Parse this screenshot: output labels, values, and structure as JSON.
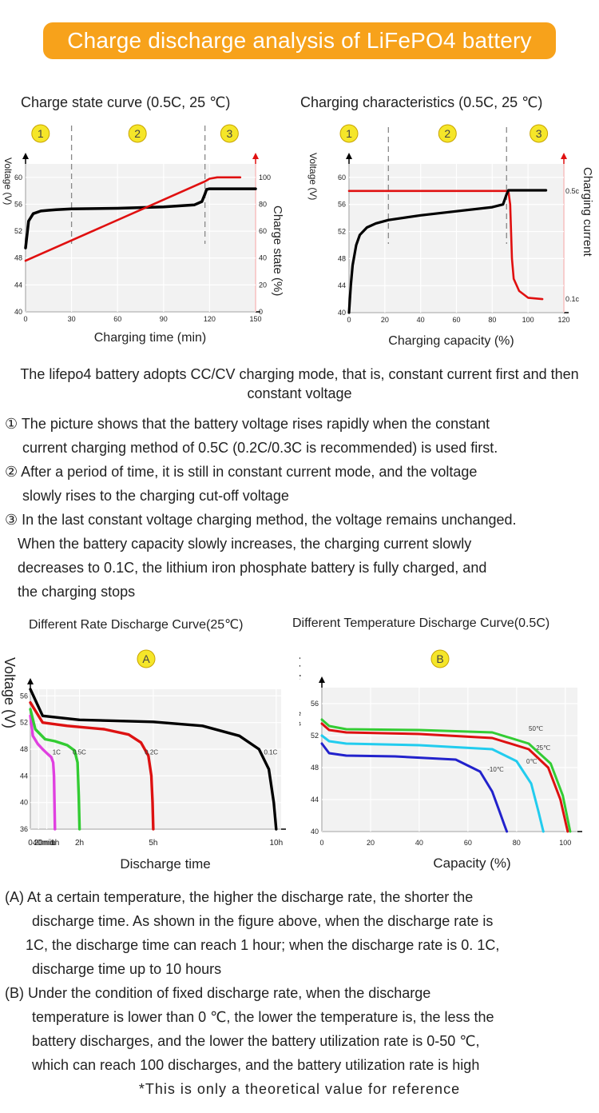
{
  "banner": "Charge discharge analysis of LiFePO4 battery",
  "charts": {
    "chart1_title": "Charge state curve (0.5C, 25 ℃)",
    "chart2_title": "Charging characteristics (0.5C, 25 ℃)",
    "chart3_title": "Different Rate Discharge Curve(25℃)",
    "chart4_title": "Different Temperature Discharge Curve(0.5C)"
  },
  "intro": "The lifepo4 battery adopts CC/CV charging mode, that is, constant current first and then constant voltage",
  "points": [
    [
      "① The picture shows that the battery voltage rises rapidly when the constant",
      "current charging method of 0.5C (0.2C/0.3C is recommended) is used first."
    ],
    [
      "② After a period of time, it is still in constant current mode, and the voltage",
      "slowly rises to the charging cut-off voltage"
    ],
    [
      "③ In the last constant voltage charging method, the voltage remains unchanged.",
      "When the battery capacity slowly increases, the charging current slowly",
      "decreases to 0.1C, the lithium iron phosphate battery is fully charged, and",
      "the charging stops"
    ]
  ],
  "notes": [
    [
      "(A) At a certain temperature, the higher the discharge rate, the shorter the",
      "discharge time. As shown in the figure above, when the discharge rate is",
      "1C, the discharge time can reach 1 hour; when the discharge rate is 0. 1C,",
      "discharge time up to 10 hours"
    ],
    [
      "(B) Under the condition of fixed discharge rate, when the discharge",
      "temperature is lower than 0 ℃, the lower the temperature is, the less the",
      "battery discharges, and the lower the battery utilization rate is 0-50 ℃,",
      "which can reach 100 discharges, and the battery utilization rate is high"
    ]
  ],
  "footnote": "*This is only a theoretical value for reference",
  "chart_data": [
    {
      "type": "line",
      "title": "Charge state curve (0.5C, 25 ℃)",
      "xlabel": "Charging time (min)",
      "ylabel": "Voltage (V)",
      "y2label": "Charge state (%)",
      "xlim": [
        0,
        150
      ],
      "ylim": [
        40,
        62
      ],
      "y2lim": [
        0,
        110
      ],
      "xticks": [
        "0",
        "30",
        "60",
        "90",
        "120",
        "150"
      ],
      "yticks": [
        "40",
        "44",
        "48",
        "52",
        "56",
        "60"
      ],
      "y2ticks": [
        "0",
        "20",
        "40",
        "60",
        "80",
        "100"
      ],
      "stage_markers": [
        "1",
        "2",
        "3"
      ],
      "stage_dividers_x": [
        30,
        117
      ],
      "series": [
        {
          "color": "#000000",
          "axis": "left",
          "x": [
            0,
            2,
            5,
            10,
            15,
            20,
            30,
            60,
            90,
            110,
            115,
            117,
            118,
            120,
            150
          ],
          "y": [
            49.5,
            53.5,
            54.6,
            55.0,
            55.1,
            55.2,
            55.3,
            55.4,
            55.6,
            55.9,
            56.4,
            57.5,
            58.2,
            58.3,
            58.3
          ]
        },
        {
          "color": "#e01010",
          "axis": "right",
          "x": [
            0,
            117,
            120,
            125,
            140
          ],
          "y": [
            38,
            97,
            99,
            100,
            100
          ]
        }
      ]
    },
    {
      "type": "line",
      "title": "Charging characteristics (0.5C, 25 ℃)",
      "xlabel": "Charging capacity (%)",
      "ylabel": "Voltage (V)",
      "y2label": "Charging current",
      "xlim": [
        0,
        120
      ],
      "ylim": [
        40,
        62
      ],
      "xticks": [
        "0",
        "20",
        "40",
        "60",
        "80",
        "100",
        "120"
      ],
      "yticks": [
        "40",
        "44",
        "48",
        "52",
        "56",
        "60"
      ],
      "y2ticks": [
        "0.1c",
        "0.5c"
      ],
      "stage_markers": [
        "1",
        "2",
        "3"
      ],
      "stage_dividers_x": [
        22,
        88
      ],
      "series": [
        {
          "color": "#000000",
          "axis": "left",
          "x": [
            0,
            1,
            2,
            4,
            6,
            10,
            15,
            22,
            40,
            60,
            80,
            86,
            88,
            89,
            100,
            110
          ],
          "y": [
            40,
            44,
            47,
            50,
            51.5,
            52.6,
            53.2,
            53.7,
            54.4,
            55.0,
            55.6,
            56.0,
            57.5,
            58.1,
            58.1,
            58.1
          ]
        },
        {
          "color": "#e01010",
          "axis": "left",
          "x": [
            0,
            89,
            90,
            91,
            92,
            95,
            100,
            108
          ],
          "y": [
            58,
            58,
            56,
            48,
            45,
            43.2,
            42.2,
            42.0
          ]
        }
      ]
    },
    {
      "type": "line",
      "title": "Different Rate Discharge Curve(25℃)",
      "marker": "A",
      "xlabel": "Discharge time",
      "ylabel": "Voltage (V)",
      "xlim": [
        0,
        10.2
      ],
      "ylim": [
        36,
        57
      ],
      "xticks": [
        "0",
        "20min",
        "40min",
        "1h",
        "2h",
        "5h",
        "10h"
      ],
      "xtick_vals": [
        0,
        0.333,
        0.667,
        1,
        2,
        5,
        10
      ],
      "yticks": [
        "36",
        "40",
        "44",
        "48",
        "52",
        "56"
      ],
      "series": [
        {
          "name": "1C",
          "color": "#e040e0",
          "x": [
            0,
            0.1,
            0.3,
            0.5,
            0.7,
            0.85,
            0.93,
            0.96,
            0.98,
            1.0
          ],
          "y": [
            53,
            50,
            48.8,
            48.0,
            47.3,
            46.8,
            46.0,
            44,
            40,
            36
          ]
        },
        {
          "name": "0.5C",
          "color": "#33cc33",
          "x": [
            0,
            0.2,
            0.6,
            1.0,
            1.5,
            1.8,
            1.92,
            1.97,
            2.0
          ],
          "y": [
            54,
            51,
            49.5,
            49.2,
            48.6,
            47.8,
            46,
            41,
            36
          ]
        },
        {
          "name": "0.2C",
          "color": "#dd1111",
          "x": [
            0,
            0.5,
            1.5,
            3,
            4,
            4.5,
            4.8,
            4.92,
            4.97,
            5.0
          ],
          "y": [
            55,
            52,
            51.5,
            51,
            50.2,
            49,
            47,
            44,
            40,
            36
          ]
        },
        {
          "name": "0.1C",
          "color": "#000000",
          "x": [
            0,
            0.5,
            2,
            5,
            7,
            8.5,
            9.3,
            9.7,
            9.9,
            10.0
          ],
          "y": [
            57,
            53,
            52.4,
            52.1,
            51.5,
            50,
            48,
            45,
            40,
            36
          ]
        }
      ]
    },
    {
      "type": "line",
      "title": "Different Temperature Discharge Curve(0.5C)",
      "marker": "B",
      "xlabel": "Capacity (%)",
      "ylabel": "Voltage (V)",
      "xlim": [
        0,
        105
      ],
      "ylim": [
        40,
        58
      ],
      "xticks": [
        "0",
        "20",
        "40",
        "60",
        "80",
        "100"
      ],
      "yticks": [
        "40",
        "44",
        "48",
        "52",
        "56"
      ],
      "series": [
        {
          "name": "-10℃",
          "color": "#2222cc",
          "x": [
            0,
            3,
            10,
            30,
            55,
            65,
            70,
            73,
            75,
            76
          ],
          "y": [
            51,
            49.8,
            49.5,
            49.4,
            49.0,
            47.5,
            45,
            42.5,
            40.8,
            40
          ]
        },
        {
          "name": "0℃",
          "color": "#22ccee",
          "x": [
            0,
            3,
            10,
            40,
            70,
            80,
            86,
            89,
            91
          ],
          "y": [
            52,
            51.3,
            51,
            50.8,
            50.3,
            48.8,
            46,
            42.5,
            40
          ]
        },
        {
          "name": "25℃",
          "color": "#dd1111",
          "x": [
            0,
            3,
            10,
            40,
            70,
            85,
            93,
            98,
            101
          ],
          "y": [
            53.5,
            52.7,
            52.4,
            52.2,
            51.7,
            50.3,
            48,
            44,
            40
          ]
        },
        {
          "name": "50℃",
          "color": "#33cc33",
          "x": [
            0,
            3,
            10,
            40,
            70,
            85,
            94,
            99,
            102
          ],
          "y": [
            54,
            53.2,
            52.8,
            52.7,
            52.4,
            51.0,
            48.5,
            44.5,
            40
          ]
        }
      ]
    }
  ]
}
